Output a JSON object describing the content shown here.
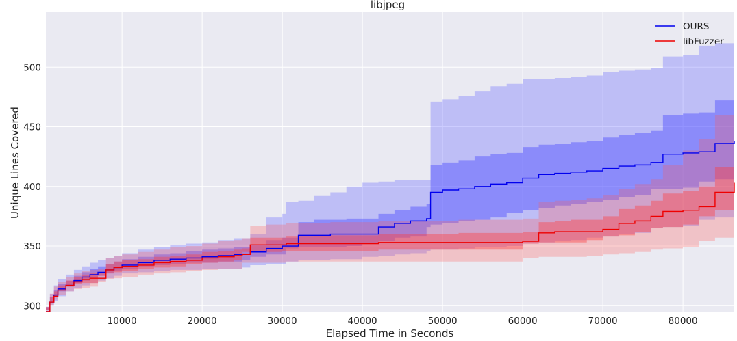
{
  "chart_data": {
    "type": "line",
    "title": "libjpeg",
    "xlabel": "Elapsed Time in Seconds",
    "ylabel": "Unique Lines Covered",
    "xlim": [
      500,
      86400
    ],
    "ylim": [
      295,
      546
    ],
    "xticks": [
      10000,
      20000,
      30000,
      40000,
      50000,
      60000,
      70000,
      80000
    ],
    "xtick_labels": [
      "10000",
      "20000",
      "30000",
      "40000",
      "50000",
      "60000",
      "70000",
      "80000"
    ],
    "yticks": [
      300,
      350,
      400,
      450,
      500
    ],
    "ytick_labels": [
      "300",
      "350",
      "400",
      "450",
      "500"
    ],
    "grid": true,
    "legend_position": "top-right",
    "x": [
      500,
      1000,
      1500,
      2000,
      3000,
      4000,
      5000,
      6000,
      7000,
      8000,
      9000,
      10000,
      12000,
      14000,
      16000,
      18000,
      20000,
      22000,
      24000,
      25000,
      26000,
      28000,
      30000,
      30500,
      32000,
      34000,
      36000,
      38000,
      40000,
      42000,
      44000,
      46000,
      48000,
      48500,
      50000,
      52000,
      54000,
      56000,
      58000,
      60000,
      62000,
      64000,
      66000,
      68000,
      70000,
      72000,
      74000,
      76000,
      77500,
      80000,
      82000,
      84000,
      86400
    ],
    "series": [
      {
        "name": "OURS",
        "color": "#0000ee",
        "values": [
          295,
          303,
          309,
          314,
          317,
          321,
          324,
          326,
          328,
          330,
          332,
          334,
          336,
          338,
          339,
          340,
          341,
          342,
          343,
          343,
          345,
          348,
          350,
          350,
          359,
          359,
          360,
          360,
          360,
          366,
          369,
          371,
          373,
          395,
          397,
          398,
          400,
          402,
          403,
          407,
          410,
          411,
          412,
          413,
          415,
          417,
          418,
          420,
          427,
          428,
          429,
          436,
          438
        ],
        "band_inner": {
          "upper": [
            296,
            307,
            313,
            318,
            321,
            325,
            328,
            331,
            333,
            335,
            337,
            339,
            341,
            343,
            344,
            346,
            347,
            348,
            349,
            349,
            351,
            355,
            357,
            357,
            370,
            372,
            372,
            373,
            373,
            377,
            380,
            383,
            385,
            418,
            420,
            422,
            425,
            427,
            428,
            433,
            435,
            436,
            437,
            438,
            441,
            443,
            445,
            447,
            460,
            461,
            462,
            472,
            474
          ],
          "lower": [
            294,
            299,
            304,
            308,
            312,
            316,
            319,
            321,
            323,
            325,
            327,
            329,
            331,
            333,
            334,
            335,
            336,
            336,
            337,
            337,
            338,
            341,
            343,
            343,
            348,
            349,
            349,
            349,
            350,
            352,
            354,
            357,
            358,
            366,
            368,
            369,
            371,
            372,
            374,
            378,
            380,
            382,
            384,
            385,
            387,
            389,
            391,
            393,
            398,
            398,
            399,
            404,
            406
          ]
        },
        "band_outer": {
          "upper": [
            298,
            310,
            317,
            322,
            326,
            330,
            333,
            336,
            338,
            340,
            342,
            344,
            347,
            349,
            351,
            352,
            353,
            355,
            356,
            356,
            360,
            374,
            377,
            387,
            388,
            392,
            395,
            400,
            403,
            404,
            405,
            405,
            405,
            471,
            473,
            476,
            480,
            484,
            486,
            490,
            490,
            491,
            492,
            493,
            496,
            497,
            498,
            499,
            509,
            510,
            518,
            520,
            520
          ],
          "lower": [
            293,
            296,
            300,
            304,
            308,
            312,
            315,
            317,
            319,
            321,
            323,
            325,
            327,
            328,
            329,
            330,
            330,
            331,
            331,
            331,
            332,
            334,
            335,
            335,
            337,
            338,
            338,
            339,
            339,
            341,
            342,
            343,
            344,
            346,
            347,
            347,
            348,
            349,
            349,
            350,
            352,
            353,
            354,
            355,
            357,
            358,
            360,
            361,
            365,
            366,
            367,
            372,
            374
          ]
        }
      },
      {
        "name": "libFuzzer",
        "color": "#ee0000",
        "values": [
          295,
          303,
          308,
          313,
          317,
          320,
          322,
          323,
          323,
          330,
          332,
          333,
          334,
          336,
          337,
          338,
          340,
          341,
          342,
          343,
          351,
          351,
          351,
          352,
          352,
          352,
          352,
          352,
          352,
          353,
          353,
          353,
          353,
          353,
          353,
          353,
          353,
          353,
          353,
          354,
          361,
          362,
          362,
          362,
          364,
          369,
          371,
          375,
          379,
          380,
          383,
          395,
          403
        ],
        "band_inner": {
          "upper": [
            296,
            307,
            312,
            317,
            321,
            324,
            326,
            327,
            327,
            335,
            337,
            338,
            339,
            341,
            342,
            343,
            345,
            346,
            347,
            348,
            357,
            357,
            357,
            358,
            358,
            359,
            359,
            359,
            359,
            360,
            360,
            360,
            360,
            360,
            360,
            361,
            361,
            361,
            361,
            362,
            370,
            371,
            372,
            372,
            375,
            381,
            384,
            388,
            394,
            396,
            400,
            416,
            430
          ],
          "lower": [
            294,
            299,
            304,
            309,
            313,
            316,
            318,
            319,
            319,
            325,
            327,
            328,
            329,
            331,
            332,
            333,
            335,
            336,
            337,
            338,
            345,
            345,
            345,
            346,
            346,
            346,
            346,
            346,
            346,
            346,
            347,
            347,
            347,
            347,
            347,
            347,
            347,
            347,
            347,
            347,
            352,
            353,
            353,
            353,
            355,
            358,
            359,
            362,
            365,
            366,
            368,
            375,
            380
          ]
        },
        "band_outer": {
          "upper": [
            298,
            310,
            316,
            320,
            324,
            327,
            329,
            330,
            331,
            340,
            342,
            343,
            345,
            347,
            349,
            350,
            352,
            354,
            355,
            356,
            367,
            368,
            368,
            369,
            369,
            369,
            370,
            370,
            370,
            371,
            371,
            371,
            371,
            371,
            371,
            372,
            372,
            372,
            372,
            373,
            387,
            388,
            389,
            390,
            393,
            398,
            402,
            406,
            418,
            430,
            440,
            460,
            470
          ],
          "lower": [
            293,
            296,
            300,
            305,
            309,
            312,
            314,
            315,
            316,
            320,
            322,
            323,
            324,
            326,
            327,
            328,
            329,
            330,
            331,
            331,
            336,
            336,
            336,
            336,
            337,
            337,
            337,
            337,
            337,
            337,
            337,
            337,
            337,
            337,
            337,
            337,
            337,
            337,
            337,
            337,
            340,
            341,
            341,
            341,
            342,
            343,
            344,
            345,
            347,
            348,
            349,
            354,
            357
          ]
        }
      }
    ]
  }
}
